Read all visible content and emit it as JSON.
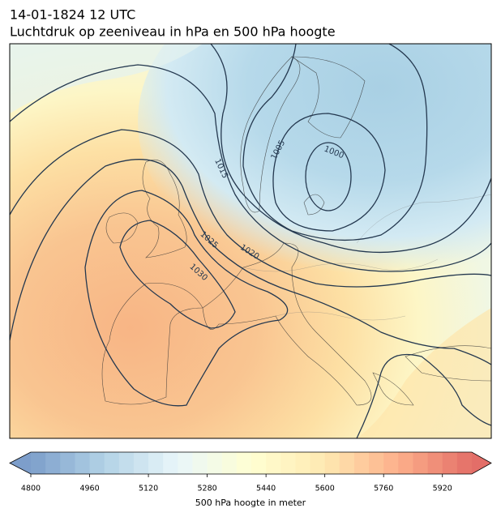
{
  "header": {
    "title": "14-01-1824 12 UTC",
    "subtitle": "Luchtdruk op zeeniveau in hPa en 500 hPa hoogte"
  },
  "map": {
    "contour_labels": [
      1005,
      1000,
      1015,
      1020,
      1025,
      1030
    ]
  },
  "colorbar": {
    "label": "500 hPa hoogte in meter",
    "lim": [
      4800,
      6000
    ],
    "ticks": [
      4800,
      4960,
      5120,
      5280,
      5440,
      5600,
      5760,
      5920
    ],
    "colors": [
      "#4575b4",
      "#91bfdb",
      "#e0f3f8",
      "#ffffbf",
      "#fee090",
      "#fc8d59",
      "#d73027"
    ]
  }
}
